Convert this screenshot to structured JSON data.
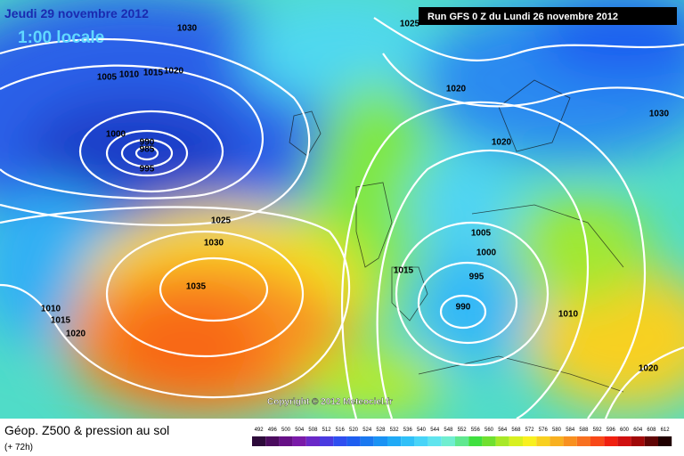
{
  "header": {
    "date": "Jeudi 29 novembre 2012",
    "time": "1:00 locale",
    "run": "Run GFS 0 Z du Lundi 26 novembre 2012"
  },
  "copyright": "Copyright © 2012 Meteociel.fr",
  "footer": {
    "title": "Géop. Z500 & pression au sol",
    "lead": "(+ 72h)"
  },
  "isobar_labels": [
    1030,
    1025,
    1020,
    1005,
    1010,
    1015,
    1020,
    1000,
    990,
    985,
    995,
    1030,
    1020,
    1025,
    1030,
    1035,
    1010,
    1015,
    1020,
    1015,
    1005,
    1000,
    995,
    990,
    1010,
    1020
  ],
  "legend": [
    {
      "label": "492",
      "color": "#2d0a3a"
    },
    {
      "label": "496",
      "color": "#4b0b5e"
    },
    {
      "label": "500",
      "color": "#660f86"
    },
    {
      "label": "504",
      "color": "#7a1aa8"
    },
    {
      "label": "508",
      "color": "#6a28c8"
    },
    {
      "label": "512",
      "color": "#4a3ae0"
    },
    {
      "label": "516",
      "color": "#2f4ef0"
    },
    {
      "label": "520",
      "color": "#1e5ef0"
    },
    {
      "label": "524",
      "color": "#1a78f0"
    },
    {
      "label": "528",
      "color": "#1a92f4"
    },
    {
      "label": "532",
      "color": "#20aaf6"
    },
    {
      "label": "536",
      "color": "#30c0f8"
    },
    {
      "label": "540",
      "color": "#48d4f8"
    },
    {
      "label": "544",
      "color": "#60e4ee"
    },
    {
      "label": "548",
      "color": "#70eed0"
    },
    {
      "label": "552",
      "color": "#60e890"
    },
    {
      "label": "556",
      "color": "#40e040"
    },
    {
      "label": "560",
      "color": "#70e030"
    },
    {
      "label": "564",
      "color": "#a8e828"
    },
    {
      "label": "568",
      "color": "#d8f020"
    },
    {
      "label": "572",
      "color": "#f8f020"
    },
    {
      "label": "576",
      "color": "#f8d020"
    },
    {
      "label": "580",
      "color": "#f8b020"
    },
    {
      "label": "584",
      "color": "#f89020"
    },
    {
      "label": "588",
      "color": "#f87020"
    },
    {
      "label": "592",
      "color": "#f84818"
    },
    {
      "label": "596",
      "color": "#f02010"
    },
    {
      "label": "600",
      "color": "#d01010"
    },
    {
      "label": "604",
      "color": "#a00808"
    },
    {
      "label": "608",
      "color": "#600404"
    },
    {
      "label": "612",
      "color": "#200000"
    }
  ]
}
